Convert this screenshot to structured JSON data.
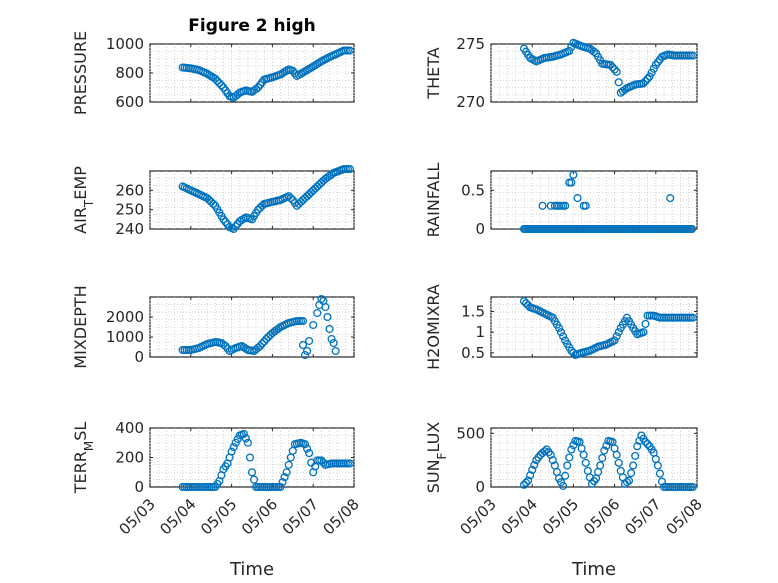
{
  "chart_data": [
    {
      "type": "scatter",
      "title": "Figure 2 high",
      "ylabel": "PRESSURE",
      "xlabel": "",
      "ylim": [
        600,
        1000
      ],
      "yticks": [
        600,
        800,
        1000
      ],
      "xticks": [
        "05/03",
        "05/04",
        "05/05",
        "05/06",
        "05/07",
        "05/08"
      ],
      "xlim": [
        0,
        5
      ],
      "x_start": 0.8,
      "x_end": 4.9,
      "step": 0.05,
      "points": [
        [
          0.8,
          838
        ],
        [
          1.0,
          832
        ],
        [
          1.2,
          820
        ],
        [
          1.4,
          795
        ],
        [
          1.6,
          760
        ],
        [
          1.8,
          700
        ],
        [
          1.95,
          640
        ],
        [
          2.05,
          630
        ],
        [
          2.2,
          665
        ],
        [
          2.35,
          680
        ],
        [
          2.5,
          670
        ],
        [
          2.65,
          700
        ],
        [
          2.8,
          755
        ],
        [
          3.0,
          770
        ],
        [
          3.2,
          790
        ],
        [
          3.4,
          825
        ],
        [
          3.5,
          815
        ],
        [
          3.6,
          780
        ],
        [
          3.7,
          795
        ],
        [
          3.85,
          820
        ],
        [
          4.0,
          845
        ],
        [
          4.2,
          880
        ],
        [
          4.4,
          910
        ],
        [
          4.6,
          935
        ],
        [
          4.75,
          955
        ]
      ]
    },
    {
      "type": "scatter",
      "title": "",
      "ylabel": "THETA",
      "xlabel": "",
      "ylim": [
        270,
        275
      ],
      "yticks": [
        270,
        275
      ],
      "xticks": [
        "05/03",
        "05/04",
        "05/05",
        "05/06",
        "05/07",
        "05/08"
      ],
      "xlim": [
        0,
        5
      ],
      "x_start": 0.8,
      "x_end": 4.9,
      "step": 0.05,
      "points": [
        [
          0.8,
          274.6
        ],
        [
          0.95,
          273.8
        ],
        [
          1.1,
          273.5
        ],
        [
          1.3,
          273.8
        ],
        [
          1.5,
          273.9
        ],
        [
          1.7,
          274.1
        ],
        [
          1.9,
          274.4
        ],
        [
          2.0,
          275.1
        ],
        [
          2.2,
          274.8
        ],
        [
          2.4,
          274.6
        ],
        [
          2.55,
          274.2
        ],
        [
          2.7,
          273.3
        ],
        [
          2.9,
          273.2
        ],
        [
          3.05,
          272.6
        ],
        [
          3.15,
          270.8
        ],
        [
          3.3,
          271.2
        ],
        [
          3.5,
          271.5
        ],
        [
          3.7,
          271.6
        ],
        [
          3.85,
          272.2
        ],
        [
          4.0,
          273.2
        ],
        [
          4.15,
          273.9
        ],
        [
          4.3,
          274.1
        ],
        [
          4.45,
          274.0
        ]
      ]
    },
    {
      "type": "scatter",
      "title": "",
      "ylabel": "AIR_TEMP",
      "xlabel": "",
      "ylim": [
        240,
        270
      ],
      "yticks": [
        240,
        250,
        260
      ],
      "xticks": [
        "05/03",
        "05/04",
        "05/05",
        "05/06",
        "05/07",
        "05/08"
      ],
      "xlim": [
        0,
        5
      ],
      "x_start": 0.8,
      "x_end": 4.9,
      "step": 0.05,
      "points": [
        [
          0.8,
          262
        ],
        [
          1.0,
          260
        ],
        [
          1.2,
          258
        ],
        [
          1.4,
          256
        ],
        [
          1.6,
          252
        ],
        [
          1.8,
          245
        ],
        [
          1.95,
          241
        ],
        [
          2.05,
          240
        ],
        [
          2.2,
          244
        ],
        [
          2.35,
          246
        ],
        [
          2.5,
          245
        ],
        [
          2.65,
          250
        ],
        [
          2.8,
          253
        ],
        [
          3.0,
          254
        ],
        [
          3.2,
          255
        ],
        [
          3.4,
          257
        ],
        [
          3.5,
          255
        ],
        [
          3.6,
          252
        ],
        [
          3.75,
          255
        ],
        [
          3.9,
          258
        ],
        [
          4.1,
          262
        ],
        [
          4.3,
          266
        ],
        [
          4.5,
          269
        ],
        [
          4.75,
          271
        ]
      ]
    },
    {
      "type": "scatter",
      "title": "",
      "ylabel": "RAINFALL",
      "xlabel": "",
      "ylim": [
        0,
        0.75
      ],
      "yticks": [
        0,
        0.5
      ],
      "xticks": [
        "05/03",
        "05/04",
        "05/05",
        "05/06",
        "05/07",
        "05/08"
      ],
      "xlim": [
        0,
        5
      ],
      "x_start": 0.8,
      "x_end": 4.9,
      "step": 0.04,
      "points": [
        [
          0.8,
          0
        ],
        [
          4.9,
          0
        ]
      ],
      "spikes": [
        [
          1.25,
          0.3
        ],
        [
          1.45,
          0.3
        ],
        [
          1.55,
          0.3
        ],
        [
          1.6,
          0.3
        ],
        [
          1.65,
          0.3
        ],
        [
          1.7,
          0.3
        ],
        [
          1.75,
          0.3
        ],
        [
          1.8,
          0.3
        ],
        [
          1.9,
          0.6
        ],
        [
          1.95,
          0.6
        ],
        [
          2.0,
          0.7
        ],
        [
          2.1,
          0.4
        ],
        [
          2.25,
          0.3
        ],
        [
          2.3,
          0.3
        ],
        [
          4.35,
          0.4
        ]
      ]
    },
    {
      "type": "scatter",
      "title": "",
      "ylabel": "MIXDEPTH",
      "xlabel": "",
      "ylim": [
        0,
        3000
      ],
      "yticks": [
        0,
        1000,
        2000
      ],
      "xticks": [
        "05/03",
        "05/04",
        "05/05",
        "05/06",
        "05/07",
        "05/08"
      ],
      "xlim": [
        0,
        5
      ],
      "x_start": 0.8,
      "x_end": 3.75,
      "step": 0.05,
      "points": [
        [
          0.8,
          350
        ],
        [
          1.0,
          350
        ],
        [
          1.2,
          450
        ],
        [
          1.4,
          650
        ],
        [
          1.6,
          750
        ],
        [
          1.75,
          700
        ],
        [
          1.85,
          550
        ],
        [
          1.95,
          300
        ],
        [
          2.1,
          450
        ],
        [
          2.25,
          550
        ],
        [
          2.4,
          350
        ],
        [
          2.55,
          300
        ],
        [
          2.7,
          550
        ],
        [
          2.85,
          900
        ],
        [
          3.0,
          1200
        ],
        [
          3.2,
          1500
        ],
        [
          3.4,
          1700
        ],
        [
          3.6,
          1800
        ],
        [
          3.75,
          1800
        ]
      ],
      "extra": [
        [
          3.75,
          600
        ],
        [
          3.8,
          100
        ],
        [
          3.85,
          300
        ],
        [
          3.9,
          800
        ],
        [
          4.0,
          1600
        ],
        [
          4.1,
          2200
        ],
        [
          4.15,
          2600
        ],
        [
          4.2,
          2900
        ],
        [
          4.25,
          2800
        ],
        [
          4.3,
          2500
        ],
        [
          4.35,
          2000
        ],
        [
          4.4,
          1400
        ],
        [
          4.45,
          900
        ],
        [
          4.5,
          700
        ],
        [
          4.55,
          300
        ]
      ]
    },
    {
      "type": "scatter",
      "title": "",
      "ylabel": "H2OMIXRA",
      "xlabel": "",
      "ylim": [
        0.4,
        1.85
      ],
      "yticks": [
        0.5,
        1,
        1.5
      ],
      "xticks": [
        "05/03",
        "05/04",
        "05/05",
        "05/06",
        "05/07",
        "05/08"
      ],
      "xlim": [
        0,
        5
      ],
      "x_start": 0.8,
      "x_end": 4.9,
      "step": 0.05,
      "points": [
        [
          0.8,
          1.75
        ],
        [
          0.95,
          1.6
        ],
        [
          1.1,
          1.55
        ],
        [
          1.3,
          1.45
        ],
        [
          1.5,
          1.35
        ],
        [
          1.65,
          1.1
        ],
        [
          1.8,
          0.8
        ],
        [
          1.95,
          0.55
        ],
        [
          2.05,
          0.45
        ],
        [
          2.2,
          0.5
        ],
        [
          2.4,
          0.55
        ],
        [
          2.6,
          0.65
        ],
        [
          2.8,
          0.7
        ],
        [
          3.0,
          0.8
        ],
        [
          3.15,
          1.1
        ],
        [
          3.3,
          1.35
        ],
        [
          3.45,
          1.1
        ],
        [
          3.55,
          0.95
        ],
        [
          3.7,
          1.0
        ],
        [
          3.8,
          1.4
        ],
        [
          3.95,
          1.4
        ],
        [
          4.1,
          1.35
        ],
        [
          4.3,
          1.35
        ],
        [
          4.45,
          1.35
        ]
      ]
    },
    {
      "type": "scatter",
      "title": "",
      "ylabel": "TERR_MSL",
      "xlabel": "Time",
      "ylim": [
        0,
        400
      ],
      "yticks": [
        0,
        200,
        400
      ],
      "xticks": [
        "05/03",
        "05/04",
        "05/05",
        "05/06",
        "05/07",
        "05/08"
      ],
      "xlim": [
        0,
        5
      ],
      "x_start": 0.8,
      "x_end": 4.9,
      "step": 0.05,
      "points": [
        [
          0.8,
          0
        ],
        [
          1.6,
          0
        ],
        [
          1.7,
          40
        ],
        [
          1.8,
          120
        ],
        [
          1.9,
          160
        ],
        [
          2.0,
          240
        ],
        [
          2.1,
          300
        ],
        [
          2.2,
          350
        ],
        [
          2.3,
          360
        ],
        [
          2.4,
          300
        ],
        [
          2.5,
          100
        ],
        [
          2.6,
          0
        ],
        [
          3.0,
          0
        ],
        [
          3.2,
          0
        ],
        [
          3.35,
          100
        ],
        [
          3.45,
          200
        ],
        [
          3.55,
          290
        ],
        [
          3.7,
          300
        ],
        [
          3.8,
          290
        ],
        [
          3.9,
          230
        ],
        [
          4.0,
          100
        ],
        [
          4.1,
          180
        ],
        [
          4.2,
          180
        ],
        [
          4.3,
          150
        ],
        [
          4.45,
          160
        ]
      ]
    },
    {
      "type": "scatter",
      "title": "",
      "ylabel": "SUN_FLUX",
      "xlabel": "Time",
      "ylim": [
        0,
        550
      ],
      "yticks": [
        0,
        500
      ],
      "xticks": [
        "05/03",
        "05/04",
        "05/05",
        "05/06",
        "05/07",
        "05/08"
      ],
      "xlim": [
        0,
        5
      ],
      "x_start": 0.8,
      "x_end": 4.9,
      "step": 0.05,
      "points": [
        [
          0.8,
          20
        ],
        [
          0.9,
          60
        ],
        [
          1.0,
          160
        ],
        [
          1.1,
          250
        ],
        [
          1.2,
          300
        ],
        [
          1.35,
          350
        ],
        [
          1.45,
          300
        ],
        [
          1.55,
          200
        ],
        [
          1.65,
          80
        ],
        [
          1.75,
          10
        ],
        [
          1.85,
          200
        ],
        [
          1.95,
          350
        ],
        [
          2.05,
          430
        ],
        [
          2.15,
          420
        ],
        [
          2.25,
          300
        ],
        [
          2.35,
          150
        ],
        [
          2.45,
          30
        ],
        [
          2.55,
          80
        ],
        [
          2.65,
          200
        ],
        [
          2.75,
          340
        ],
        [
          2.85,
          430
        ],
        [
          2.95,
          420
        ],
        [
          3.05,
          300
        ],
        [
          3.15,
          150
        ],
        [
          3.25,
          30
        ],
        [
          3.35,
          60
        ],
        [
          3.45,
          200
        ],
        [
          3.55,
          380
        ],
        [
          3.65,
          480
        ],
        [
          3.75,
          420
        ],
        [
          3.85,
          380
        ],
        [
          3.95,
          320
        ],
        [
          4.05,
          200
        ],
        [
          4.15,
          50
        ],
        [
          4.2,
          0
        ]
      ]
    }
  ]
}
